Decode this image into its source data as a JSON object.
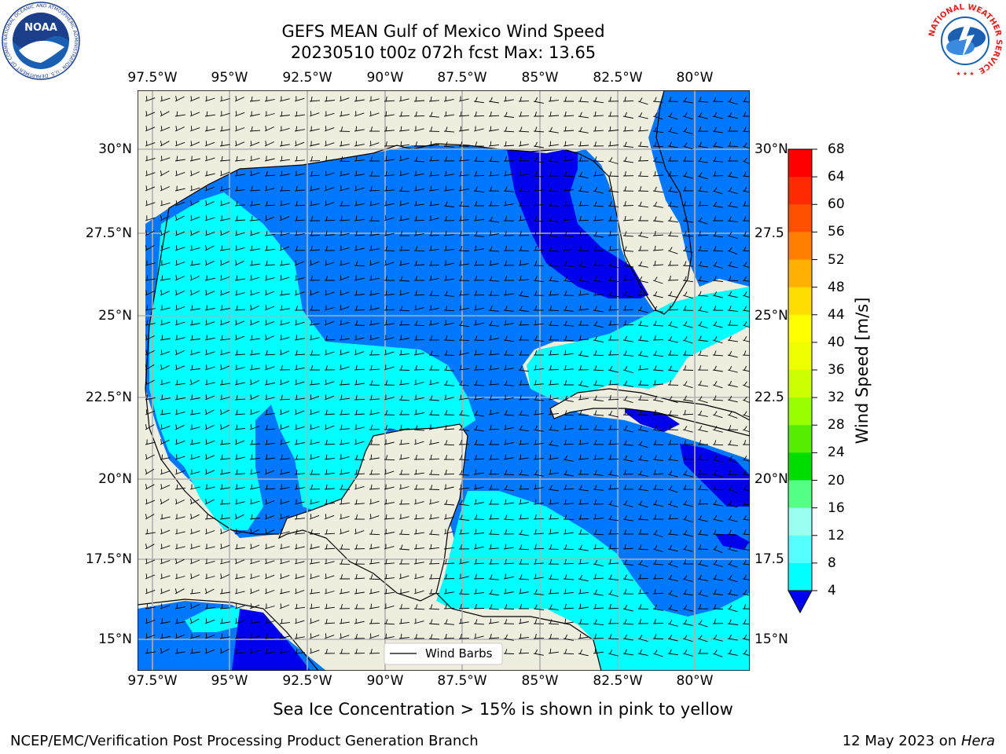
{
  "title_line1": "GEFS MEAN Gulf of Mexico Wind Speed",
  "title_line2": "20230510 t00z 072h fcst   Max: 13.65",
  "lon_labels": [
    "97.5°W",
    "95°W",
    "92.5°W",
    "90°W",
    "87.5°W",
    "85°W",
    "82.5°W",
    "80°W"
  ],
  "lat_labels_left": [
    "30°N",
    "27.5°N",
    "25°N",
    "22.5°N",
    "20°N",
    "17.5°N",
    "15°N"
  ],
  "lat_labels_right": [
    "30°N",
    "27.5",
    "25°N",
    "22.5",
    "20°N",
    "17.5",
    "15°N"
  ],
  "legend": {
    "wind_barbs": "Wind Barbs"
  },
  "colorbar": {
    "label": "Wind Speed [m/s]",
    "ticks": [
      "4",
      "8",
      "12",
      "16",
      "20",
      "24",
      "28",
      "32",
      "36",
      "40",
      "44",
      "48",
      "52",
      "56",
      "60",
      "64",
      "68"
    ],
    "colors": [
      "#0077ff",
      "#00ffff",
      "#40ffff",
      "#80ffff",
      "#b3ffee",
      "#55ff66",
      "#22ee22",
      "#00dd00",
      "#55ff00",
      "#aaff00",
      "#ccff00",
      "#eeff00",
      "#ffff00",
      "#ffdd00",
      "#ffb300",
      "#ff8c00",
      "#ff6600",
      "#ff3300",
      "#ff0000"
    ],
    "under_color": "#0000ee"
  },
  "map_colors": {
    "land": "#efedde",
    "c4": "#0077ff",
    "c8": "#00ffff",
    "c12": "#40ffff",
    "cunder": "#0000ee",
    "grid": "#b0b0b0"
  },
  "footer_note": "Sea Ice Concentration > 15% is shown in pink to yellow",
  "footer_left": "NCEP/EMC/Verification Post Processing Product Generation Branch",
  "footer_right_date": "12 May 2023 on ",
  "footer_right_host": "Hera",
  "logo_left_text": "NOAA",
  "logo_left_ring": "NATIONAL OCEANIC AND ATMOSPHERIC ADMINISTRATION · U.S. DEPARTMENT OF COMMERCE",
  "logo_right_ring": "NATIONAL WEATHER SERVICE"
}
